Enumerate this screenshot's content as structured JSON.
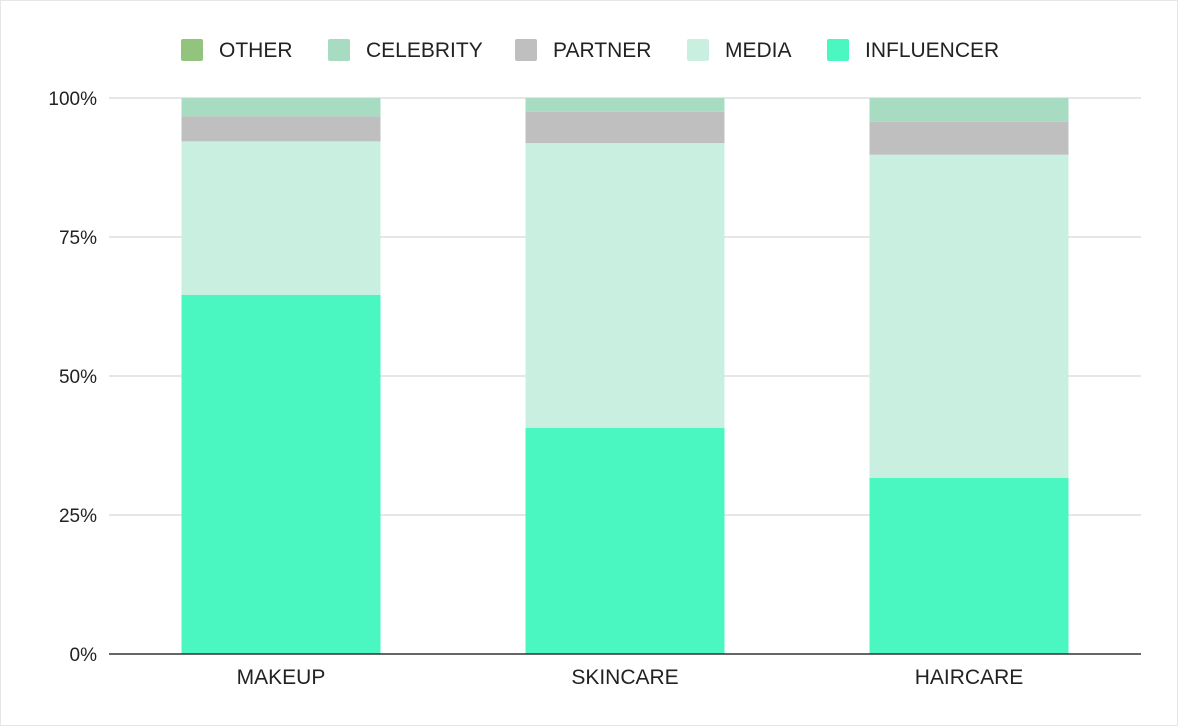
{
  "chart_data": {
    "type": "bar",
    "stacked": true,
    "categories": [
      "MAKEUP",
      "SKINCARE",
      "HAIRCARE"
    ],
    "series": [
      {
        "name": "INFLUENCER",
        "color": "#4bf7c0",
        "values": [
          64.6,
          40.7,
          31.7
        ]
      },
      {
        "name": "MEDIA",
        "color": "#c8efe0",
        "values": [
          27.6,
          51.2,
          58.1
        ]
      },
      {
        "name": "PARTNER",
        "color": "#bfbfbf",
        "values": [
          4.5,
          5.6,
          5.9
        ]
      },
      {
        "name": "CELEBRITY",
        "color": "#a8dcc2",
        "values": [
          3.3,
          2.5,
          4.3
        ]
      },
      {
        "name": "OTHER",
        "color": "#93c47d",
        "values": [
          0,
          0,
          0
        ]
      }
    ],
    "legend_order": [
      "OTHER",
      "CELEBRITY",
      "PARTNER",
      "MEDIA",
      "INFLUENCER"
    ],
    "legend_position": "top",
    "y_ticks": [
      "0%",
      "25%",
      "50%",
      "75%",
      "100%"
    ],
    "ylim": [
      0,
      100
    ],
    "grid": true,
    "title": "",
    "xlabel": "",
    "ylabel": ""
  }
}
